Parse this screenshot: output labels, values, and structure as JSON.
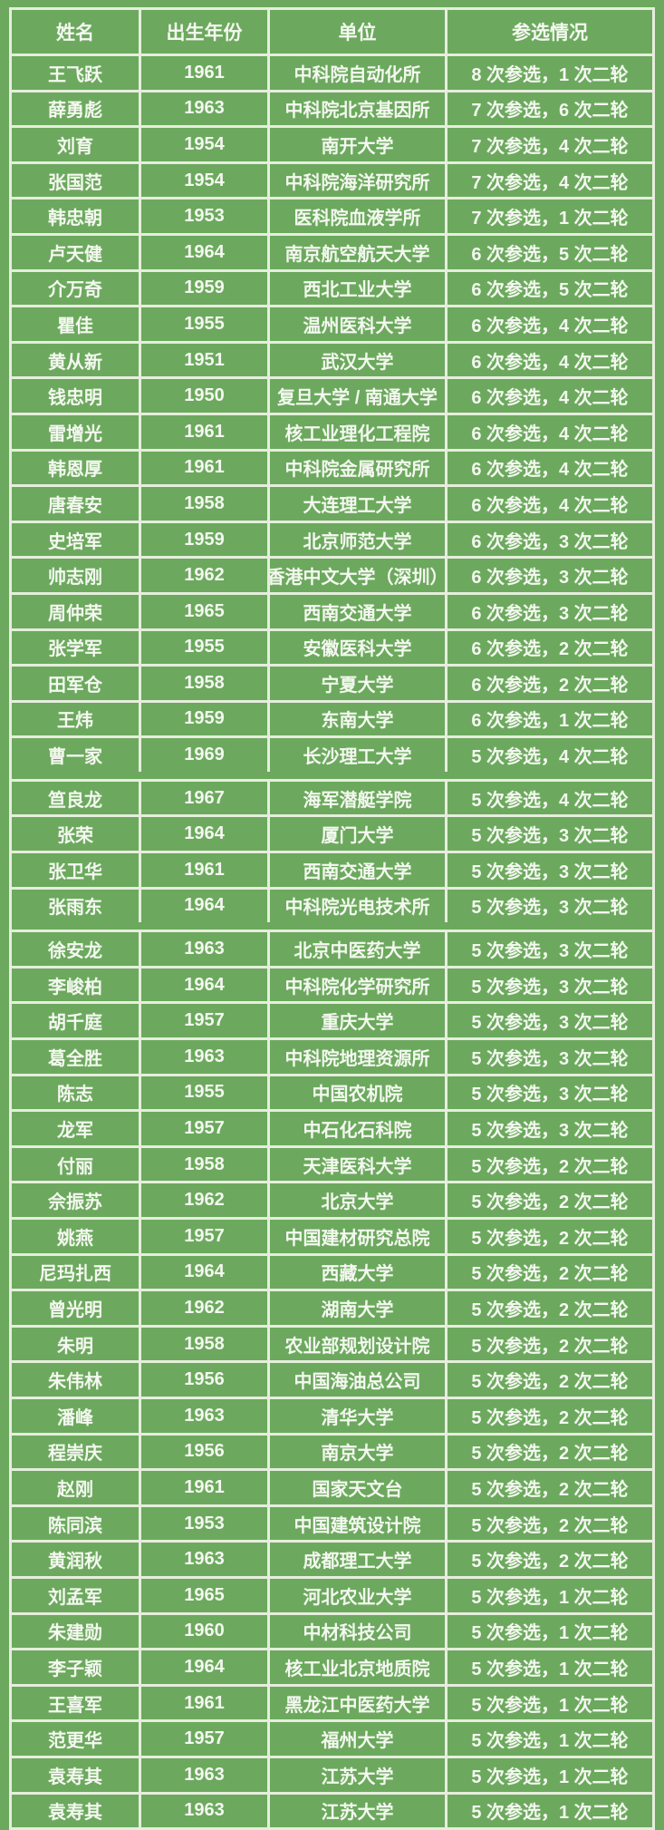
{
  "colors": {
    "background_green": "#6ca95e",
    "grid_line": "#e6eedd",
    "text": "#f4f8f0"
  },
  "table": {
    "columns": [
      "姓名",
      "出生年份",
      "单位",
      "参选情况"
    ],
    "rows": [
      {
        "name": "王飞跃",
        "year": "1961",
        "unit": "中科院自动化所",
        "status": "8 次参选，1 次二轮"
      },
      {
        "name": "薛勇彪",
        "year": "1963",
        "unit": "中科院北京基因所",
        "status": "7 次参选，6 次二轮"
      },
      {
        "name": "刘育",
        "year": "1954",
        "unit": "南开大学",
        "status": "7 次参选，4 次二轮"
      },
      {
        "name": "张国范",
        "year": "1954",
        "unit": "中科院海洋研究所",
        "status": "7 次参选，4 次二轮"
      },
      {
        "name": "韩忠朝",
        "year": "1953",
        "unit": "医科院血液学所",
        "status": "7 次参选，1 次二轮"
      },
      {
        "name": "卢天健",
        "year": "1964",
        "unit": "南京航空航天大学",
        "status": "6 次参选，5 次二轮"
      },
      {
        "name": "介万奇",
        "year": "1959",
        "unit": "西北工业大学",
        "status": "6 次参选，5 次二轮"
      },
      {
        "name": "瞿佳",
        "year": "1955",
        "unit": "温州医科大学",
        "status": "6 次参选，4 次二轮"
      },
      {
        "name": "黄从新",
        "year": "1951",
        "unit": "武汉大学",
        "status": "6 次参选，4 次二轮"
      },
      {
        "name": "钱忠明",
        "year": "1950",
        "unit": "复旦大学 / 南通大学",
        "status": "6 次参选，4 次二轮"
      },
      {
        "name": "雷增光",
        "year": "1961",
        "unit": "核工业理化工程院",
        "status": "6 次参选，4 次二轮"
      },
      {
        "name": "韩恩厚",
        "year": "1961",
        "unit": "中科院金属研究所",
        "status": "6 次参选，4 次二轮"
      },
      {
        "name": "唐春安",
        "year": "1958",
        "unit": "大连理工大学",
        "status": "6 次参选，4 次二轮"
      },
      {
        "name": "史培军",
        "year": "1959",
        "unit": "北京师范大学",
        "status": "6 次参选，3 次二轮"
      },
      {
        "name": "帅志刚",
        "year": "1962",
        "unit": "香港中文大学（深圳）",
        "status": "6 次参选，3 次二轮"
      },
      {
        "name": "周仲荣",
        "year": "1965",
        "unit": "西南交通大学",
        "status": "6 次参选，3 次二轮"
      },
      {
        "name": "张学军",
        "year": "1955",
        "unit": "安徽医科大学",
        "status": "6 次参选，2 次二轮"
      },
      {
        "name": "田军仓",
        "year": "1958",
        "unit": "宁夏大学",
        "status": "6 次参选，2 次二轮"
      },
      {
        "name": "王炜",
        "year": "1959",
        "unit": "东南大学",
        "status": "6 次参选，1 次二轮"
      },
      {
        "name": "曹一家",
        "year": "1969",
        "unit": "长沙理工大学",
        "status": "5 次参选，4 次二轮"
      },
      {
        "name": "笪良龙",
        "year": "1967",
        "unit": "海军潜艇学院",
        "status": "5 次参选，4 次二轮",
        "gap_before": true
      },
      {
        "name": "张荣",
        "year": "1964",
        "unit": "厦门大学",
        "status": "5 次参选，3 次二轮"
      },
      {
        "name": "张卫华",
        "year": "1961",
        "unit": "西南交通大学",
        "status": "5 次参选，3 次二轮"
      },
      {
        "name": "张雨东",
        "year": "1964",
        "unit": "中科院光电技术所",
        "status": "5 次参选，3 次二轮"
      },
      {
        "name": "徐安龙",
        "year": "1963",
        "unit": "北京中医药大学",
        "status": "5 次参选，3 次二轮",
        "gap_before": true
      },
      {
        "name": "李峻柏",
        "year": "1964",
        "unit": "中科院化学研究所",
        "status": "5 次参选，3 次二轮"
      },
      {
        "name": "胡千庭",
        "year": "1957",
        "unit": "重庆大学",
        "status": "5 次参选，3 次二轮"
      },
      {
        "name": "葛全胜",
        "year": "1963",
        "unit": "中科院地理资源所",
        "status": "5 次参选，3 次二轮"
      },
      {
        "name": "陈志",
        "year": "1955",
        "unit": "中国农机院",
        "status": "5 次参选，3 次二轮"
      },
      {
        "name": "龙军",
        "year": "1957",
        "unit": "中石化石科院",
        "status": "5 次参选，3 次二轮"
      },
      {
        "name": "付丽",
        "year": "1958",
        "unit": "天津医科大学",
        "status": "5 次参选，2 次二轮"
      },
      {
        "name": "佘振苏",
        "year": "1962",
        "unit": "北京大学",
        "status": "5 次参选，2 次二轮"
      },
      {
        "name": "姚燕",
        "year": "1957",
        "unit": "中国建材研究总院",
        "status": "5 次参选，2 次二轮"
      },
      {
        "name": "尼玛扎西",
        "year": "1964",
        "unit": "西藏大学",
        "status": "5 次参选，2 次二轮"
      },
      {
        "name": "曾光明",
        "year": "1962",
        "unit": "湖南大学",
        "status": "5 次参选，2 次二轮"
      },
      {
        "name": "朱明",
        "year": "1958",
        "unit": "农业部规划设计院",
        "status": "5 次参选，2 次二轮"
      },
      {
        "name": "朱伟林",
        "year": "1956",
        "unit": "中国海油总公司",
        "status": "5 次参选，2 次二轮"
      },
      {
        "name": "潘峰",
        "year": "1963",
        "unit": "清华大学",
        "status": "5 次参选，2 次二轮"
      },
      {
        "name": "程崇庆",
        "year": "1956",
        "unit": "南京大学",
        "status": "5 次参选，2 次二轮"
      },
      {
        "name": "赵刚",
        "year": "1961",
        "unit": "国家天文台",
        "status": "5 次参选，2 次二轮"
      },
      {
        "name": "陈同滨",
        "year": "1953",
        "unit": "中国建筑设计院",
        "status": "5 次参选，2 次二轮"
      },
      {
        "name": "黄润秋",
        "year": "1963",
        "unit": "成都理工大学",
        "status": "5 次参选，2 次二轮"
      },
      {
        "name": "刘孟军",
        "year": "1965",
        "unit": "河北农业大学",
        "status": "5 次参选，1 次二轮"
      },
      {
        "name": "朱建勋",
        "year": "1960",
        "unit": "中材科技公司",
        "status": "5 次参选，1 次二轮"
      },
      {
        "name": "李子颖",
        "year": "1964",
        "unit": "核工业北京地质院",
        "status": "5 次参选，1 次二轮"
      },
      {
        "name": "王喜军",
        "year": "1961",
        "unit": "黑龙江中医药大学",
        "status": "5 次参选，1 次二轮"
      },
      {
        "name": "范更华",
        "year": "1957",
        "unit": "福州大学",
        "status": "5 次参选，1 次二轮"
      },
      {
        "name": "袁寿其",
        "year": "1963",
        "unit": "江苏大学",
        "status": "5 次参选，1 次二轮"
      },
      {
        "name": "袁寿其",
        "year": "1963",
        "unit": "江苏大学",
        "status": "5 次参选，1 次二轮"
      }
    ]
  }
}
